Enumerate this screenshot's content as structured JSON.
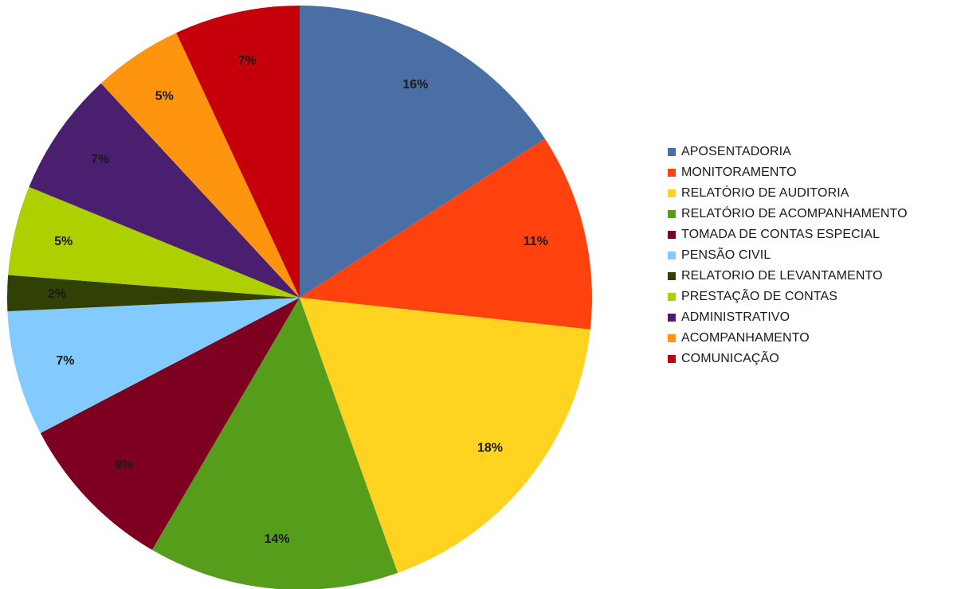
{
  "chart_data": {
    "type": "pie",
    "title": "",
    "legend_position": "right",
    "start_angle_deg": 0,
    "direction": "clockwise",
    "slices": [
      {
        "name": "APOSENTADORIA",
        "value": 16,
        "label": "16%",
        "color": "#4a6fa5"
      },
      {
        "name": "MONITORAMENTO",
        "value": 11,
        "label": "11%",
        "color": "#ff420e"
      },
      {
        "name": "RELATÓRIO DE AUDITORIA",
        "value": 18,
        "label": "18%",
        "color": "#ffd320"
      },
      {
        "name": "RELATÓRIO DE ACOMPANHAMENTO",
        "value": 14,
        "label": "14%",
        "color": "#579d1c"
      },
      {
        "name": "TOMADA DE CONTAS ESPECIAL",
        "value": 9,
        "label": "9%",
        "color": "#7e0021"
      },
      {
        "name": "PENSÃO CIVIL",
        "value": 7,
        "label": "7%",
        "color": "#83caff"
      },
      {
        "name": "RELATORIO DE LEVANTAMENTO",
        "value": 2,
        "label": "2%",
        "color": "#314004"
      },
      {
        "name": "PRESTAÇÃO DE CONTAS",
        "value": 5,
        "label": "5%",
        "color": "#aecf00"
      },
      {
        "name": "ADMINISTRATIVO",
        "value": 7,
        "label": "7%",
        "color": "#4b1f6f"
      },
      {
        "name": "ACOMPANHAMENTO",
        "value": 5,
        "label": "5%",
        "color": "#ff950e"
      },
      {
        "name": "COMUNICAÇÃO",
        "value": 7,
        "label": "7%",
        "color": "#c5000b"
      }
    ]
  }
}
